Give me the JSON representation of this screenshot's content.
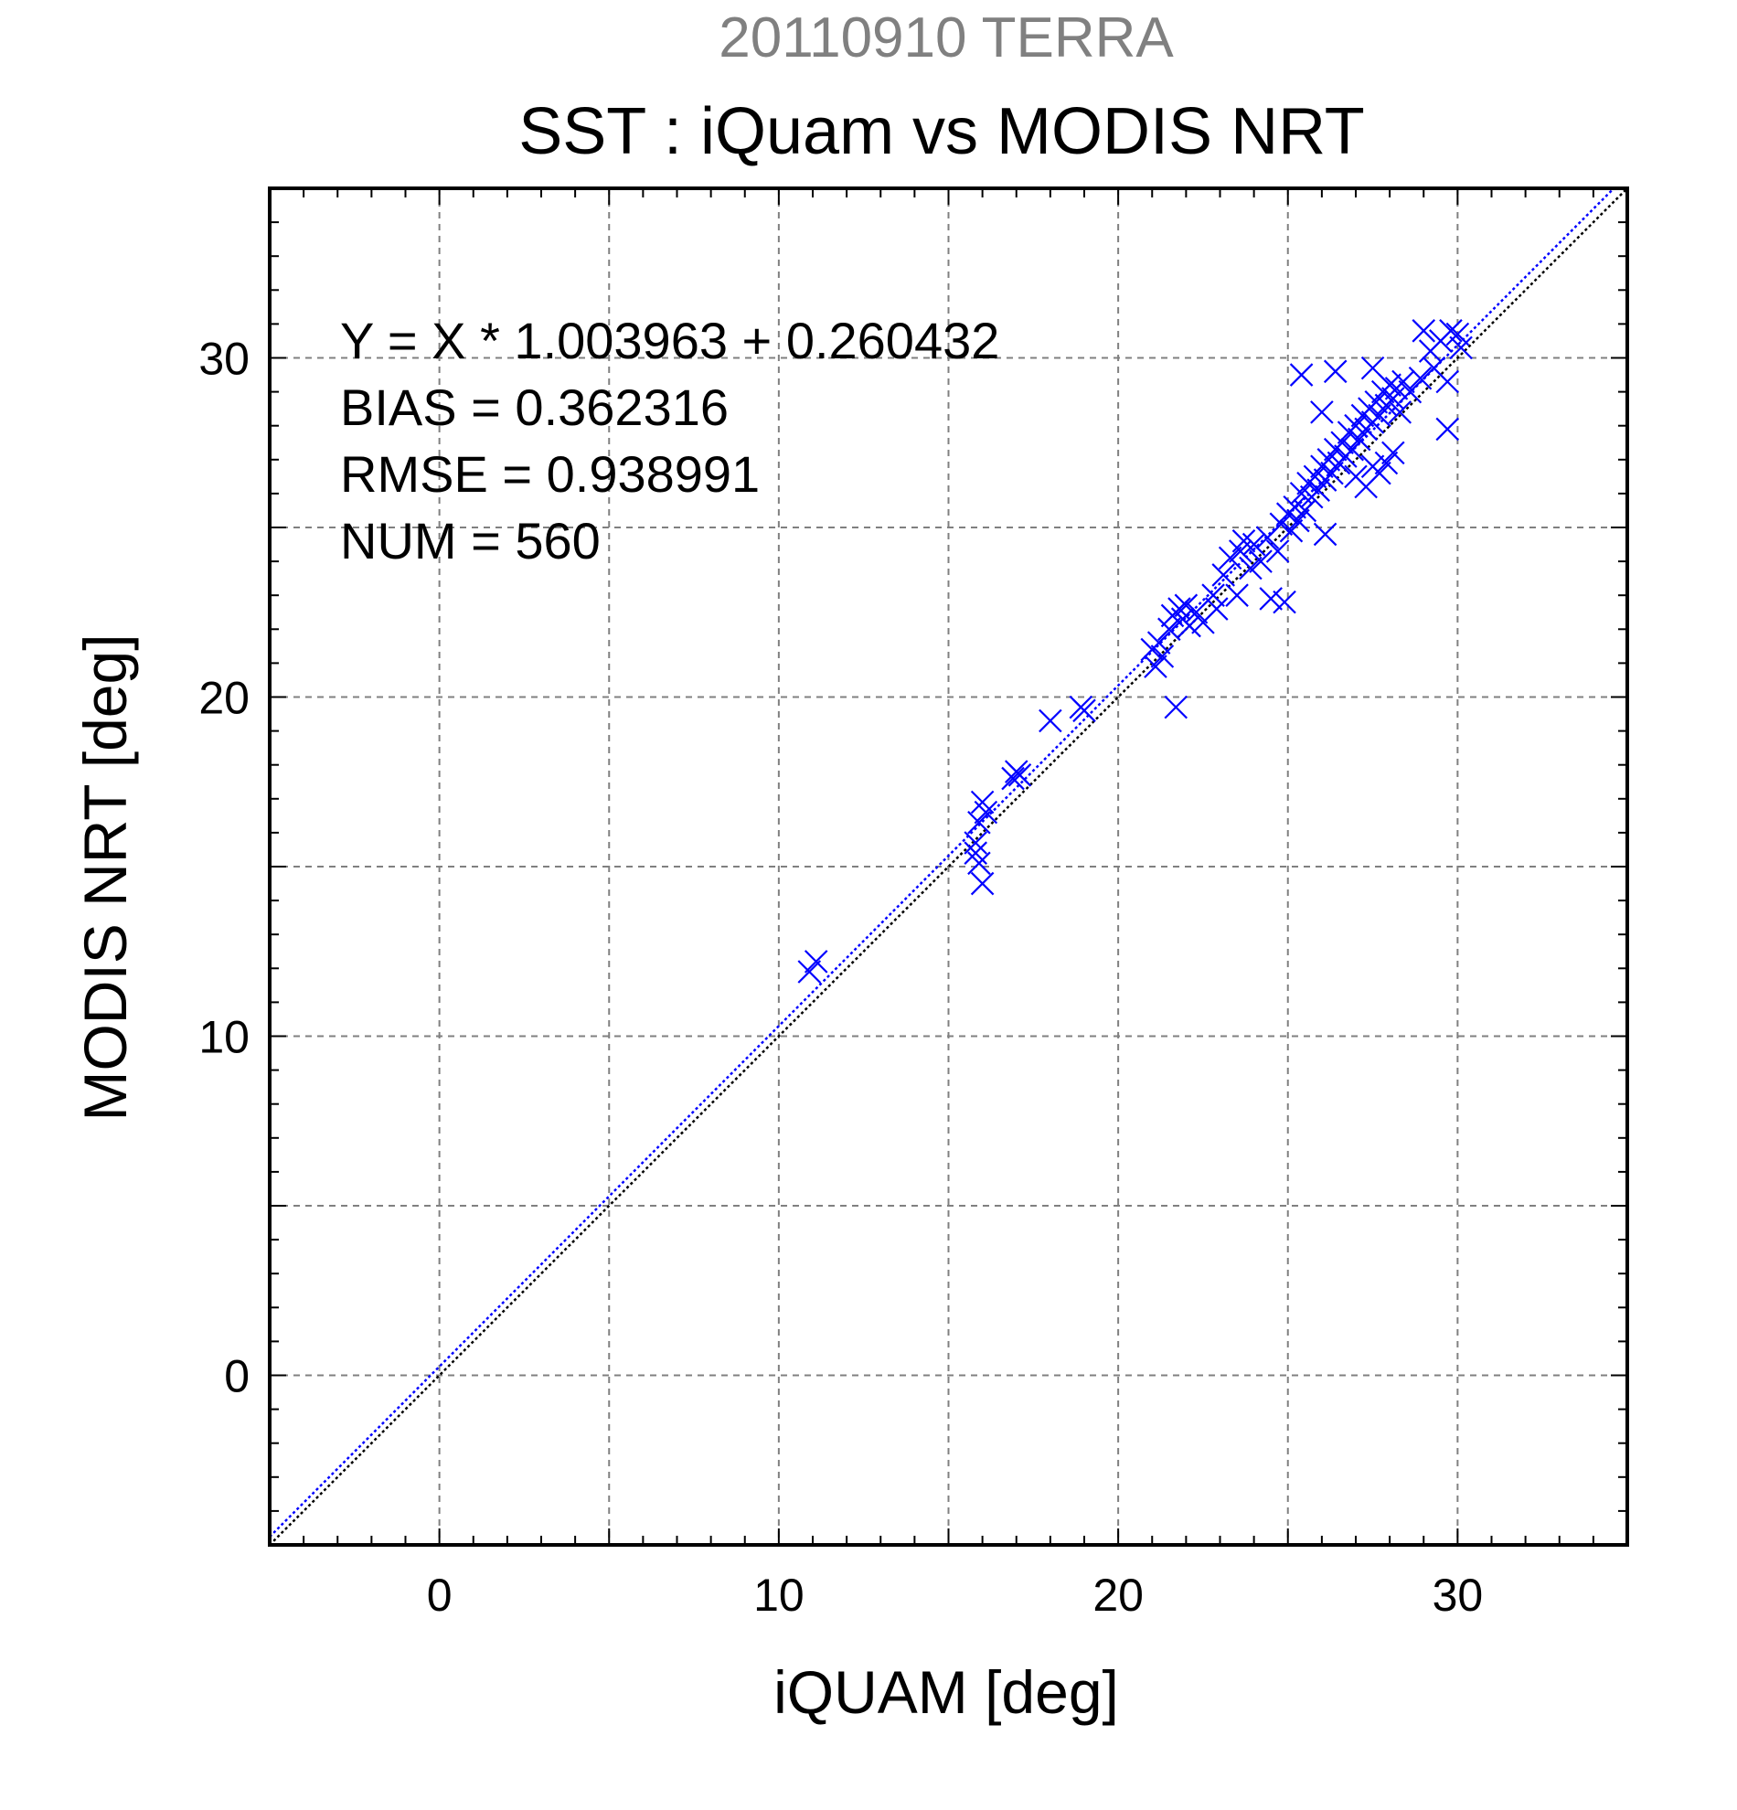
{
  "chart_data": {
    "type": "scatter",
    "title": "SST : iQuam vs MODIS NRT",
    "subtitle": "20110910 TERRA",
    "xlabel": "iQUAM [deg]",
    "ylabel": "MODIS NRT [deg]",
    "xlim": [
      -5,
      35
    ],
    "ylim": [
      -5,
      35
    ],
    "xticks": [
      "0",
      "10",
      "20",
      "30"
    ],
    "yticks": [
      "0",
      "10",
      "20",
      "30"
    ],
    "grid": true,
    "marker": "x",
    "colors": {
      "points": "#0000ff",
      "fit_line": "#0000ff",
      "identity_line": "#000000",
      "grid": "#808080"
    },
    "stats": [
      "Y = X * 1.003963 + 0.260432",
      "BIAS = 0.362316",
      "RMSE = 0.938991",
      "NUM = 560"
    ],
    "lines": [
      {
        "slope": 1.003963,
        "intercept": 0.260432,
        "color": "#0000ff",
        "style": "dotted"
      },
      {
        "slope": 1.0,
        "intercept": 0.0,
        "color": "#000000",
        "style": "dotted"
      }
    ],
    "series": [
      {
        "values": [
          [
            10.9,
            11.9
          ],
          [
            11.1,
            12.2
          ],
          [
            15.8,
            15.7
          ],
          [
            15.9,
            16.3
          ],
          [
            16.0,
            16.9
          ],
          [
            15.9,
            15.1
          ],
          [
            16.0,
            14.5
          ],
          [
            16.1,
            16.6
          ],
          [
            15.8,
            15.4
          ],
          [
            16.9,
            17.6
          ],
          [
            17.0,
            17.8
          ],
          [
            17.1,
            17.7
          ],
          [
            18.0,
            19.3
          ],
          [
            18.9,
            19.7
          ],
          [
            19.0,
            19.6
          ],
          [
            21.0,
            21.4
          ],
          [
            21.1,
            20.9
          ],
          [
            21.2,
            21.6
          ],
          [
            21.3,
            21.2
          ],
          [
            21.5,
            22.0
          ],
          [
            21.6,
            22.4
          ],
          [
            21.7,
            19.7
          ],
          [
            21.8,
            22.6
          ],
          [
            21.9,
            22.3
          ],
          [
            22.0,
            22.7
          ],
          [
            22.1,
            22.1
          ],
          [
            22.3,
            22.5
          ],
          [
            22.5,
            22.2
          ],
          [
            22.8,
            23.0
          ],
          [
            22.9,
            22.6
          ],
          [
            23.1,
            23.6
          ],
          [
            23.3,
            24.1
          ],
          [
            23.5,
            23.0
          ],
          [
            23.6,
            24.3
          ],
          [
            23.7,
            24.6
          ],
          [
            23.9,
            23.8
          ],
          [
            24.0,
            24.5
          ],
          [
            24.2,
            24.0
          ],
          [
            24.4,
            24.7
          ],
          [
            24.5,
            22.9
          ],
          [
            24.7,
            24.3
          ],
          [
            24.8,
            25.1
          ],
          [
            24.9,
            22.8
          ],
          [
            25.0,
            25.4
          ],
          [
            25.1,
            24.9
          ],
          [
            25.2,
            25.6
          ],
          [
            25.3,
            25.2
          ],
          [
            25.4,
            26.0
          ],
          [
            25.5,
            25.5
          ],
          [
            25.6,
            26.3
          ],
          [
            25.7,
            25.9
          ],
          [
            25.8,
            26.5
          ],
          [
            25.9,
            26.1
          ],
          [
            26.0,
            26.8
          ],
          [
            26.1,
            24.8
          ],
          [
            26.1,
            26.4
          ],
          [
            26.2,
            27.0
          ],
          [
            26.3,
            26.6
          ],
          [
            26.4,
            27.3
          ],
          [
            26.5,
            26.9
          ],
          [
            26.6,
            27.5
          ],
          [
            26.7,
            27.1
          ],
          [
            26.8,
            27.8
          ],
          [
            26.9,
            27.3
          ],
          [
            27.0,
            28.0
          ],
          [
            27.0,
            26.5
          ],
          [
            27.1,
            27.6
          ],
          [
            27.2,
            28.3
          ],
          [
            27.3,
            27.9
          ],
          [
            27.3,
            26.2
          ],
          [
            27.4,
            28.5
          ],
          [
            27.5,
            28.1
          ],
          [
            27.5,
            26.8
          ],
          [
            27.6,
            28.7
          ],
          [
            27.7,
            28.3
          ],
          [
            27.7,
            26.6
          ],
          [
            27.8,
            29.0
          ],
          [
            27.9,
            28.6
          ],
          [
            27.9,
            26.9
          ],
          [
            28.0,
            29.2
          ],
          [
            28.1,
            28.8
          ],
          [
            28.1,
            27.2
          ],
          [
            28.2,
            29.1
          ],
          [
            28.3,
            28.4
          ],
          [
            28.4,
            29.3
          ],
          [
            25.4,
            29.5
          ],
          [
            26.4,
            29.6
          ],
          [
            26.0,
            28.4
          ],
          [
            27.5,
            29.7
          ],
          [
            28.9,
            29.4
          ],
          [
            29.2,
            30.2
          ],
          [
            29.5,
            30.5
          ],
          [
            29.7,
            29.3
          ],
          [
            29.8,
            30.8
          ],
          [
            29.7,
            27.9
          ],
          [
            30.0,
            30.7
          ],
          [
            30.1,
            30.3
          ],
          [
            29.0,
            30.8
          ],
          [
            29.3,
            29.7
          ],
          [
            28.6,
            29.0
          ]
        ]
      }
    ]
  }
}
